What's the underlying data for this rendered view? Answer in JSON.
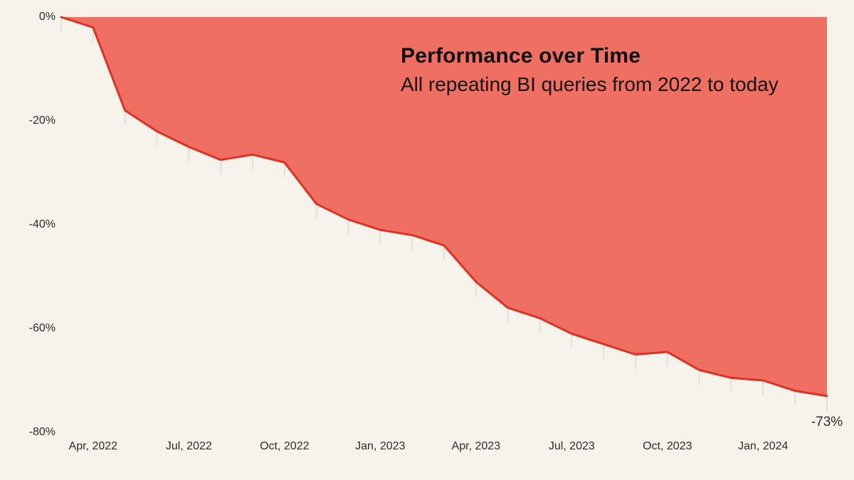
{
  "chart_data": {
    "type": "area",
    "title": "Performance over Time",
    "subtitle": "All repeating BI queries from 2022 to today",
    "x": [
      "Mar 2022",
      "Apr 2022",
      "May 2022",
      "Jun 2022",
      "Jul 2022",
      "Aug 2022",
      "Sep 2022",
      "Oct 2022",
      "Nov 2022",
      "Dec 2022",
      "Jan 2023",
      "Feb 2023",
      "Mar 2023",
      "Apr 2023",
      "May 2023",
      "Jun 2023",
      "Jul 2023",
      "Aug 2023",
      "Sep 2023",
      "Oct 2023",
      "Nov 2023",
      "Dec 2023",
      "Jan 2024",
      "Feb 2024",
      "Mar 2024"
    ],
    "values": [
      0,
      -2,
      -18,
      -22,
      -25,
      -27.5,
      -26.5,
      -28,
      -36,
      -39,
      -41,
      -42,
      -44,
      -51,
      -56,
      -58,
      -61,
      -63,
      -65,
      -64.5,
      -68,
      -69.5,
      -70,
      -72,
      -73
    ],
    "ylabel": "",
    "xlabel": "",
    "ylim": [
      -80,
      0
    ],
    "x_tick_labels": [
      "Apr, 2022",
      "Jul, 2022",
      "Oct, 2022",
      "Jan, 2023",
      "Apr, 2023",
      "Jul, 2023",
      "Oct, 2023",
      "Jan, 2024"
    ],
    "x_tick_indices": [
      1,
      4,
      7,
      10,
      13,
      16,
      19,
      22
    ],
    "y_tick_labels": [
      "0%",
      "-20%",
      "-40%",
      "-60%",
      "-80%"
    ],
    "y_tick_values": [
      0,
      -20,
      -40,
      -60,
      -80
    ],
    "end_label": "-73%",
    "grid": "off",
    "legend": "none",
    "colors": {
      "background": "#f6f3ed",
      "area_fill": "#ef6f62",
      "line": "#e1301f",
      "point_tick": "#e3e0d9",
      "title_text": "#0f0f0f",
      "axis_text": "#2b2b2b"
    }
  }
}
